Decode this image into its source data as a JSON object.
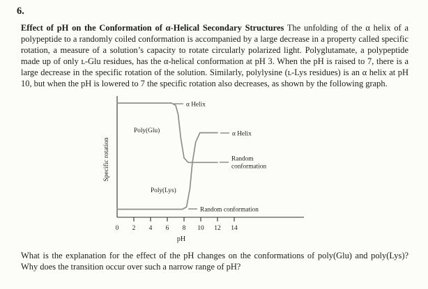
{
  "page": {
    "problem_number": "6.",
    "problem_title": "Effect of pH on the Conformation of α-Helical Secondary Structures",
    "problem_text": "The unfolding of the α helix of a polypeptide to a randomly coiled conformation is accompanied by a large decrease in a property called specific rotation, a measure of a solution’s capacity to rotate circularly polarized light. Polyglutamate, a polypeptide made up of only ʟ-Glu residues, has the α-helical conformation at pH 3. When the pH is raised to 7, there is a large decrease in the specific rotation of the solution. Similarly, polylysine (ʟ-Lys residues) is an α helix at pH 10, but when the pH is lowered to 7 the specific rotation also decreases, as shown by the following graph.",
    "question_text": "What is the explanation for the effect of the pH changes on the conformations of poly(Glu) and poly(Lys)? Why does the transition occur over such a narrow range of pH?"
  },
  "figure": {
    "curve_labels": {
      "glu_helix": "α Helix",
      "lys_helix": "α Helix",
      "glu_random_line1": "Random",
      "glu_random_line2": "conformation",
      "lys_random": "Random conformation"
    }
  },
  "chart_data": {
    "type": "line",
    "title": "",
    "xlabel": "pH",
    "ylabel": "Specific rotation",
    "xlim": [
      0,
      15
    ],
    "x_ticks": [
      0,
      2,
      4,
      6,
      8,
      10,
      12,
      14
    ],
    "y_axis_scale": "unlabeled axis; y values are relative specific rotation normalized 0–1",
    "grid": false,
    "legend": "inline labels on curves",
    "series": [
      {
        "name": "Poly(Glu)",
        "low_pH_state": "α Helix",
        "high_pH_state": "Random conformation",
        "x": [
          0,
          6.5,
          7.0,
          7.3,
          7.6,
          8.0,
          8.5,
          12.0
        ],
        "y": [
          1.0,
          1.0,
          0.98,
          0.9,
          0.7,
          0.52,
          0.48,
          0.48
        ]
      },
      {
        "name": "Poly(Lys)",
        "low_pH_state": "Random conformation",
        "high_pH_state": "α Helix",
        "x": [
          0,
          7.8,
          8.3,
          8.7,
          9.0,
          9.4,
          9.9,
          12.0
        ],
        "y": [
          0.07,
          0.07,
          0.09,
          0.25,
          0.48,
          0.66,
          0.74,
          0.74
        ]
      }
    ]
  }
}
